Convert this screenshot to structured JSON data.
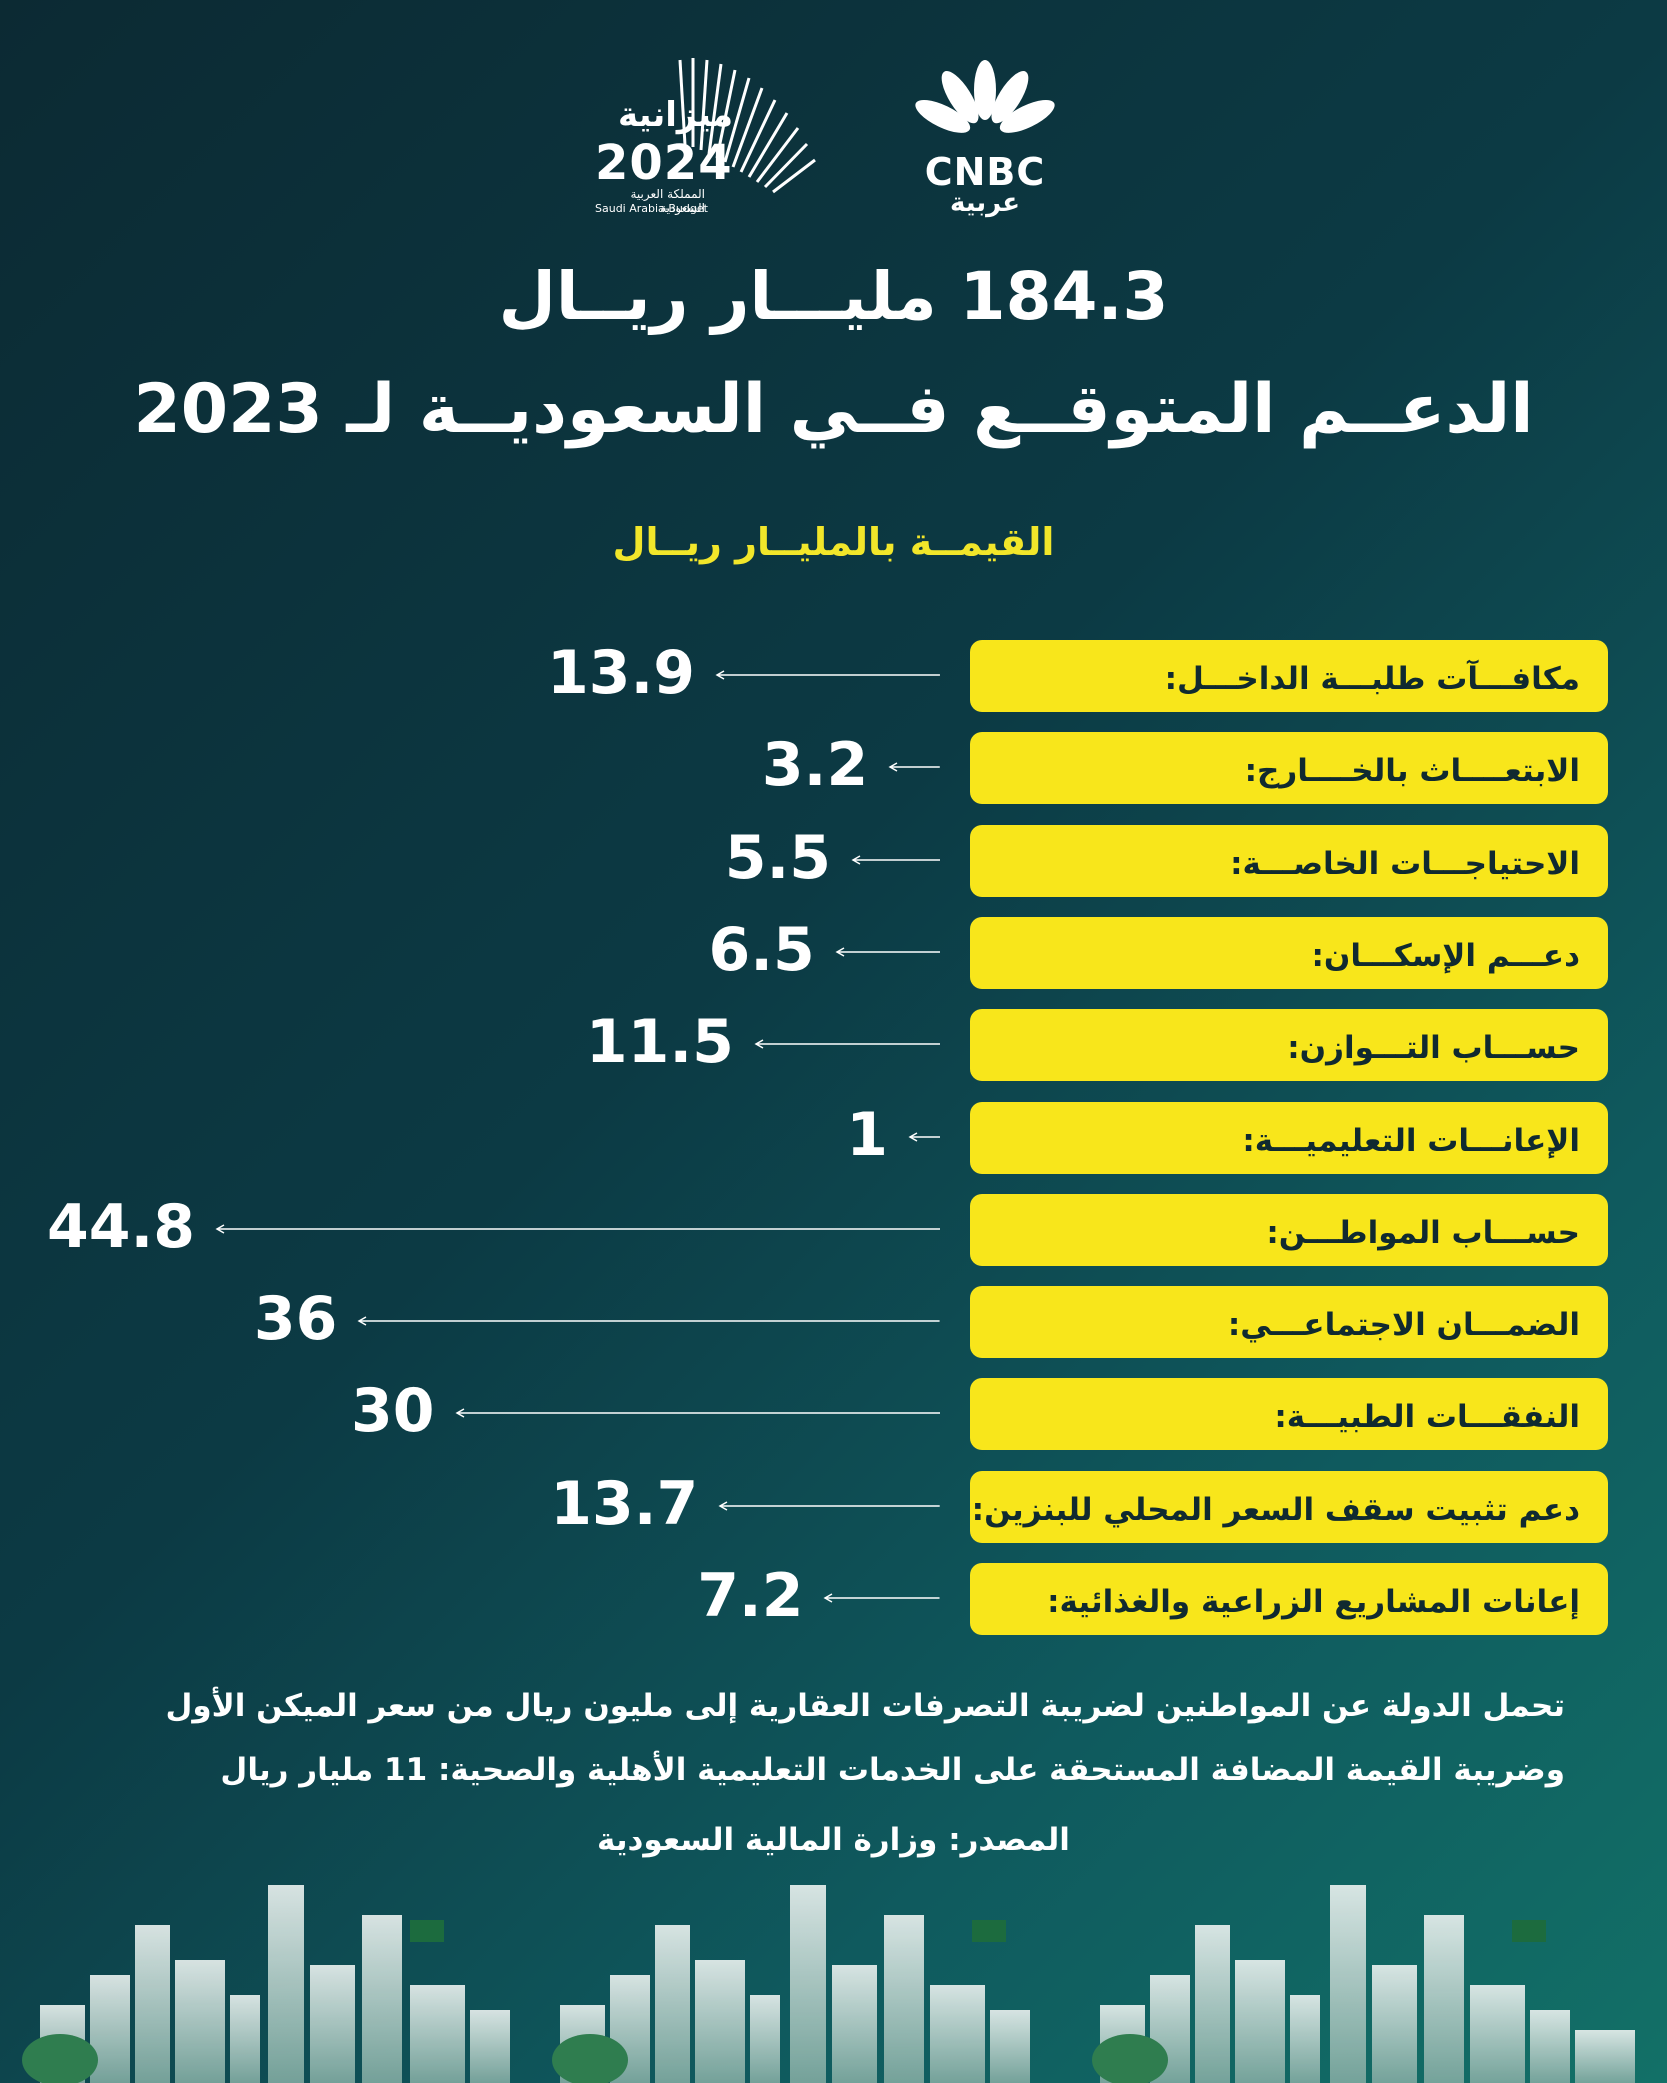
{
  "logos": {
    "budget_ar": "ميزانية",
    "budget_year": "2024",
    "budget_sub_ar": "المملكة العربية السعودية",
    "budget_sub_en": "Saudi Arabia-Budget",
    "cnbc_text": "CNBC",
    "cnbc_ar": "عربية",
    "cnbc_colors": [
      "#ffffff"
    ]
  },
  "title_line1": "184.3 مليـــار ريــال",
  "title_line2": "الدعــم المتوقــع فــي السعوديــة لـ 2023",
  "unit_label": "القيمــة بالمليــار ريــال",
  "chart_data": {
    "type": "bar",
    "unit": "القيمــة بالمليــار ريــال",
    "categories": [
      "مكافـــآت طلبـــة الداخـــل:",
      "الابتعــــاث بالخــــارج:",
      "الاحتياجـــات الخاصـــة:",
      "دعـــم الإسكـــان:",
      "حســـاب التـــوازن:",
      "الإعانـــات التعليميـــة:",
      "حســـاب المواطـــن:",
      "الضمـــان الاجتماعـــي:",
      "النفقـــات الطبيـــة:",
      "دعم تثبيت سقف السعر المحلي للبنزين:",
      "إعانات المشاريع الزراعية والغذائية:"
    ],
    "values": [
      13.9,
      3.2,
      5.5,
      6.5,
      11.5,
      1,
      44.8,
      36,
      30,
      13.7,
      7.2
    ],
    "value_labels": [
      "13.9",
      "3.2",
      "5.5",
      "6.5",
      "11.5",
      "1",
      "44.8",
      "36",
      "30",
      "13.7",
      "7.2"
    ],
    "xlim": [
      0,
      44.8
    ],
    "colors": {
      "label_box": "#f8e61b",
      "label_text": "#102a30",
      "arrow": "#ffffff",
      "value": "#ffffff"
    }
  },
  "notes": {
    "line1": "تحمل الدولة عن المواطنين لضريبة التصرفات العقارية إلى مليون ريال من سعر الميكن الأول",
    "line2": "وضريبة القيمة المضافة المستحقة على الخدمات التعليمية الأهلية والصحية: 11  مليار ريال"
  },
  "source": "المصدر: وزارة المالية السعودية"
}
